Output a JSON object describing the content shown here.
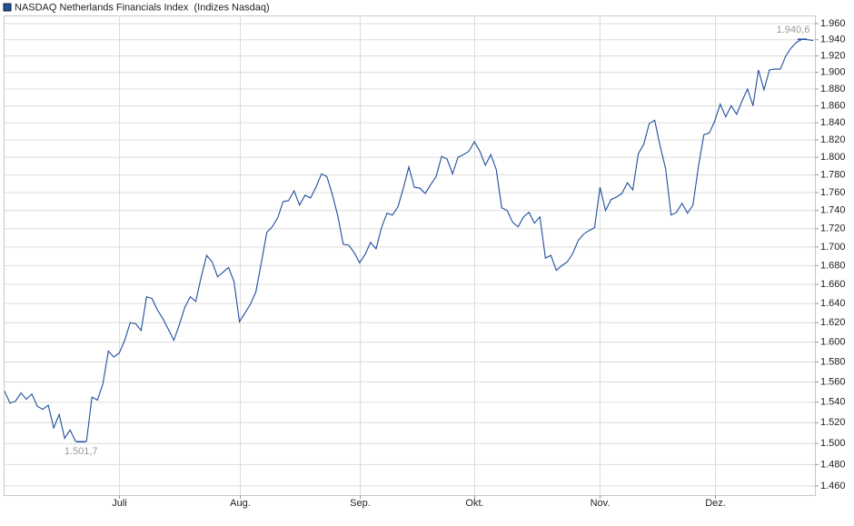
{
  "chart_data": {
    "type": "line",
    "log_y": true,
    "grid": true,
    "legend": "top-left",
    "categories": [
      null,
      null,
      null,
      null,
      null,
      null,
      null,
      null,
      null,
      null,
      null,
      null,
      null,
      null,
      null,
      null,
      null,
      null,
      null,
      null,
      null,
      "Juli",
      null,
      null,
      null,
      null,
      null,
      null,
      null,
      null,
      null,
      null,
      null,
      null,
      null,
      null,
      null,
      null,
      null,
      null,
      null,
      null,
      null,
      "Aug.",
      null,
      null,
      null,
      null,
      null,
      null,
      null,
      null,
      null,
      null,
      null,
      null,
      null,
      null,
      null,
      null,
      null,
      null,
      null,
      null,
      null,
      "Sep.",
      null,
      null,
      null,
      null,
      null,
      null,
      null,
      null,
      null,
      null,
      null,
      null,
      null,
      null,
      null,
      null,
      null,
      null,
      null,
      null,
      "Okt.",
      null,
      null,
      null,
      null,
      null,
      null,
      null,
      null,
      null,
      null,
      null,
      null,
      null,
      null,
      null,
      null,
      null,
      null,
      null,
      null,
      null,
      null,
      "Nov.",
      null,
      null,
      null,
      null,
      null,
      null,
      null,
      null,
      null,
      null,
      null,
      null,
      null,
      null,
      null,
      null,
      null,
      null,
      null,
      null,
      "Dez.",
      null,
      null,
      null,
      null,
      null,
      null,
      null,
      null,
      null,
      null,
      null,
      null,
      null,
      null,
      null,
      null,
      null,
      null
    ],
    "series": [
      {
        "name": "NASDAQ Netherlands Financials Index  (Indizes Nasdaq)",
        "color": "#1f4e9c",
        "values": [
          1551,
          1539,
          1541,
          1549,
          1543,
          1548,
          1536,
          1533,
          1537,
          1515,
          1528,
          1505,
          1513,
          1502,
          1501.7,
          1502,
          1545,
          1542,
          1558,
          1591,
          1585,
          1589,
          1602,
          1620,
          1619,
          1612,
          1647,
          1645,
          1633,
          1624,
          1613,
          1602,
          1618,
          1636,
          1647,
          1642,
          1668,
          1691,
          1684,
          1668,
          1673,
          1678,
          1663,
          1621,
          1630,
          1639,
          1652,
          1683,
          1716,
          1722,
          1732,
          1750,
          1751,
          1762,
          1746,
          1757,
          1754,
          1766,
          1781,
          1778,
          1758,
          1734,
          1703,
          1702,
          1694,
          1683,
          1692,
          1705,
          1698,
          1721,
          1737,
          1735,
          1744,
          1765,
          1789,
          1766,
          1765,
          1759,
          1769,
          1778,
          1801,
          1798,
          1781,
          1800,
          1803,
          1807,
          1818,
          1807,
          1791,
          1803,
          1786,
          1743,
          1740,
          1727,
          1722,
          1733,
          1738,
          1726,
          1733,
          1688,
          1691,
          1675,
          1680,
          1684,
          1693,
          1707,
          1714,
          1718,
          1721,
          1766,
          1740,
          1752,
          1755,
          1759,
          1771,
          1763,
          1804,
          1815,
          1839,
          1843,
          1813,
          1787,
          1735,
          1738,
          1748,
          1737,
          1746,
          1789,
          1826,
          1828,
          1842,
          1862,
          1847,
          1860,
          1850,
          1866,
          1880,
          1860,
          1903,
          1879,
          1903,
          1904,
          1904,
          1920,
          1930,
          1937,
          1940.6,
          1940,
          1939
        ],
        "value_labels": [
          null,
          null,
          null,
          null,
          null,
          null,
          null,
          null,
          null,
          null,
          null,
          null,
          null,
          null,
          "1.501,7",
          null,
          null,
          null,
          null,
          null,
          null,
          null,
          null,
          null,
          null,
          null,
          null,
          null,
          null,
          null,
          null,
          null,
          null,
          null,
          null,
          null,
          null,
          null,
          null,
          null,
          null,
          null,
          null,
          null,
          null,
          null,
          null,
          null,
          null,
          null,
          null,
          null,
          null,
          null,
          null,
          null,
          null,
          null,
          null,
          null,
          null,
          null,
          null,
          null,
          null,
          null,
          null,
          null,
          null,
          null,
          null,
          null,
          null,
          null,
          null,
          null,
          null,
          null,
          null,
          null,
          null,
          null,
          null,
          null,
          null,
          null,
          null,
          null,
          null,
          null,
          null,
          null,
          null,
          null,
          null,
          null,
          null,
          null,
          null,
          null,
          null,
          null,
          null,
          null,
          null,
          null,
          null,
          null,
          null,
          null,
          null,
          null,
          null,
          null,
          null,
          null,
          null,
          null,
          null,
          null,
          null,
          null,
          null,
          null,
          null,
          null,
          null,
          null,
          null,
          null,
          null,
          null,
          null,
          null,
          null,
          null,
          null,
          null,
          null,
          null,
          null,
          null,
          null,
          null,
          null,
          null,
          "1.940,6",
          null,
          null
        ]
      }
    ],
    "ylim": [
      1451.5,
      1970.2
    ],
    "yticks": [
      {
        "value": 1460,
        "label": "1.460"
      },
      {
        "value": 1480,
        "label": "1.480"
      },
      {
        "value": 1500,
        "label": "1.500"
      },
      {
        "value": 1520,
        "label": "1.520"
      },
      {
        "value": 1540,
        "label": "1.540"
      },
      {
        "value": 1560,
        "label": "1.560"
      },
      {
        "value": 1580,
        "label": "1.580"
      },
      {
        "value": 1600,
        "label": "1.600"
      },
      {
        "value": 1620,
        "label": "1.620"
      },
      {
        "value": 1640,
        "label": "1.640"
      },
      {
        "value": 1660,
        "label": "1.660"
      },
      {
        "value": 1680,
        "label": "1.680"
      },
      {
        "value": 1700,
        "label": "1.700"
      },
      {
        "value": 1720,
        "label": "1.720"
      },
      {
        "value": 1740,
        "label": "1.740"
      },
      {
        "value": 1760,
        "label": "1.760"
      },
      {
        "value": 1780,
        "label": "1.780"
      },
      {
        "value": 1800,
        "label": "1.800"
      },
      {
        "value": 1820,
        "label": "1.820"
      },
      {
        "value": 1840,
        "label": "1.840"
      },
      {
        "value": 1860,
        "label": "1.860"
      },
      {
        "value": 1880,
        "label": "1.880"
      },
      {
        "value": 1900,
        "label": "1.900"
      },
      {
        "value": 1920,
        "label": "1.920"
      },
      {
        "value": 1940,
        "label": "1.940"
      },
      {
        "value": 1960,
        "label": "1.960"
      }
    ]
  }
}
